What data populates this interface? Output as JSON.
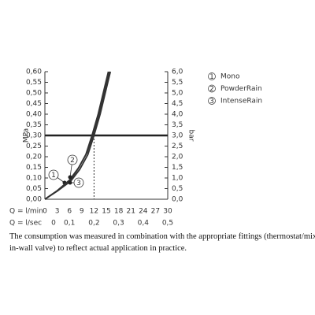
{
  "chart_data": {
    "type": "line",
    "y_label": "MPa",
    "y2_label": "bar",
    "x_label": "Q = l/min",
    "x2_label": "Q = l/sec",
    "xlim": [
      0,
      30
    ],
    "xticks": [
      0,
      3,
      6,
      9,
      12,
      15,
      18,
      21,
      24,
      27,
      30
    ],
    "x2lim": [
      0,
      0.5
    ],
    "x2ticks": [
      0,
      {
        "value": 0.1,
        "label": "0,1"
      },
      {
        "value": 0.2,
        "label": "0,2"
      },
      {
        "value": 0.3,
        "label": "0,3"
      },
      {
        "value": 0.4,
        "label": "0,4"
      },
      {
        "value": 0.5,
        "label": "0,5"
      }
    ],
    "ylim": [
      0,
      0.6
    ],
    "yticks": [
      {
        "value": 0,
        "label": "0,00"
      },
      {
        "value": 0.05,
        "label": "0,05"
      },
      {
        "value": 0.1,
        "label": "0,10"
      },
      {
        "value": 0.15,
        "label": "0,15"
      },
      {
        "value": 0.2,
        "label": "0,20"
      },
      {
        "value": 0.25,
        "label": "0,25"
      },
      {
        "value": 0.3,
        "label": "0,30"
      },
      {
        "value": 0.35,
        "label": "0,35"
      },
      {
        "value": 0.4,
        "label": "0,40"
      },
      {
        "value": 0.45,
        "label": "0,45"
      },
      {
        "value": 0.5,
        "label": "0,50"
      },
      {
        "value": 0.55,
        "label": "0,55"
      },
      {
        "value": 0.6,
        "label": "0,60"
      }
    ],
    "y2lim": [
      0,
      6
    ],
    "y2ticks": [
      {
        "value": 0,
        "label": "0,0"
      },
      {
        "value": 0.5,
        "label": "0,5"
      },
      {
        "value": 1,
        "label": "1,0"
      },
      {
        "value": 1.5,
        "label": "1,5"
      },
      {
        "value": 2,
        "label": "2,0"
      },
      {
        "value": 2.5,
        "label": "2,5"
      },
      {
        "value": 3,
        "label": "3,0"
      },
      {
        "value": 3.5,
        "label": "3,5"
      },
      {
        "value": 4,
        "label": "4,0"
      },
      {
        "value": 4.5,
        "label": "4,5"
      },
      {
        "value": 5,
        "label": "5,0"
      },
      {
        "value": 5.5,
        "label": "5,5"
      },
      {
        "value": 6,
        "label": "6,0"
      }
    ],
    "reference_y": 0.3,
    "reference_x": 12,
    "series": [
      {
        "name": "Mono",
        "marker": "1",
        "color": "#333333",
        "x": [
          0,
          3,
          6,
          8,
          10,
          11.5,
          13,
          14.5,
          15.5
        ],
        "values": [
          0,
          0.04,
          0.085,
          0.14,
          0.21,
          0.3,
          0.4,
          0.52,
          0.6
        ]
      },
      {
        "name": "PowderRain",
        "marker": "2",
        "color": "#333333",
        "x": [
          0,
          3,
          6,
          8.3,
          10.3,
          11.7,
          13.2,
          14.8,
          15.8
        ],
        "values": [
          0,
          0.04,
          0.09,
          0.15,
          0.22,
          0.3,
          0.4,
          0.52,
          0.6
        ]
      },
      {
        "name": "IntenseRain",
        "marker": "3",
        "color": "#333333",
        "x": [
          0,
          3,
          6.3,
          8.5,
          10.5,
          12,
          13.5,
          15,
          16
        ],
        "values": [
          0,
          0.038,
          0.085,
          0.14,
          0.21,
          0.3,
          0.4,
          0.52,
          0.6
        ]
      }
    ]
  },
  "note": [
    "The consumption was measured in combination with the appropriate fittings (thermostat/mixer/",
    "in-wall valve) to reflect actual application in practice."
  ]
}
